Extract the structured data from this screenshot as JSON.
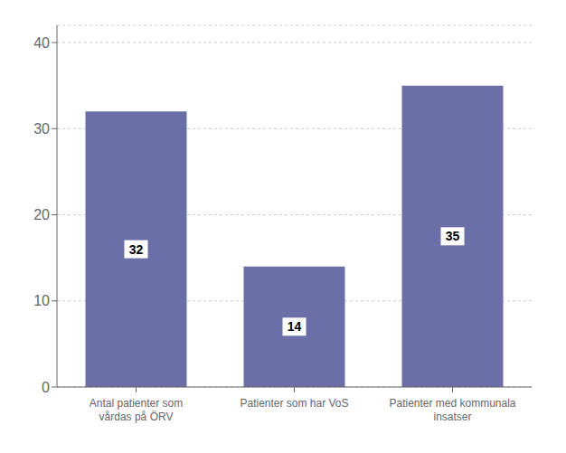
{
  "chart_data": {
    "type": "bar",
    "categories": [
      "Antal patienter som\nvårdas på ÖRV",
      "Patienter som har VoS",
      "Patienter med kommunala\ninsatser"
    ],
    "values": [
      32,
      14,
      35
    ],
    "color": "#6b6fa8",
    "ylim": [
      0,
      42
    ],
    "yticks": [
      0,
      10,
      20,
      30,
      40
    ],
    "grid": true,
    "data_labels": true
  }
}
